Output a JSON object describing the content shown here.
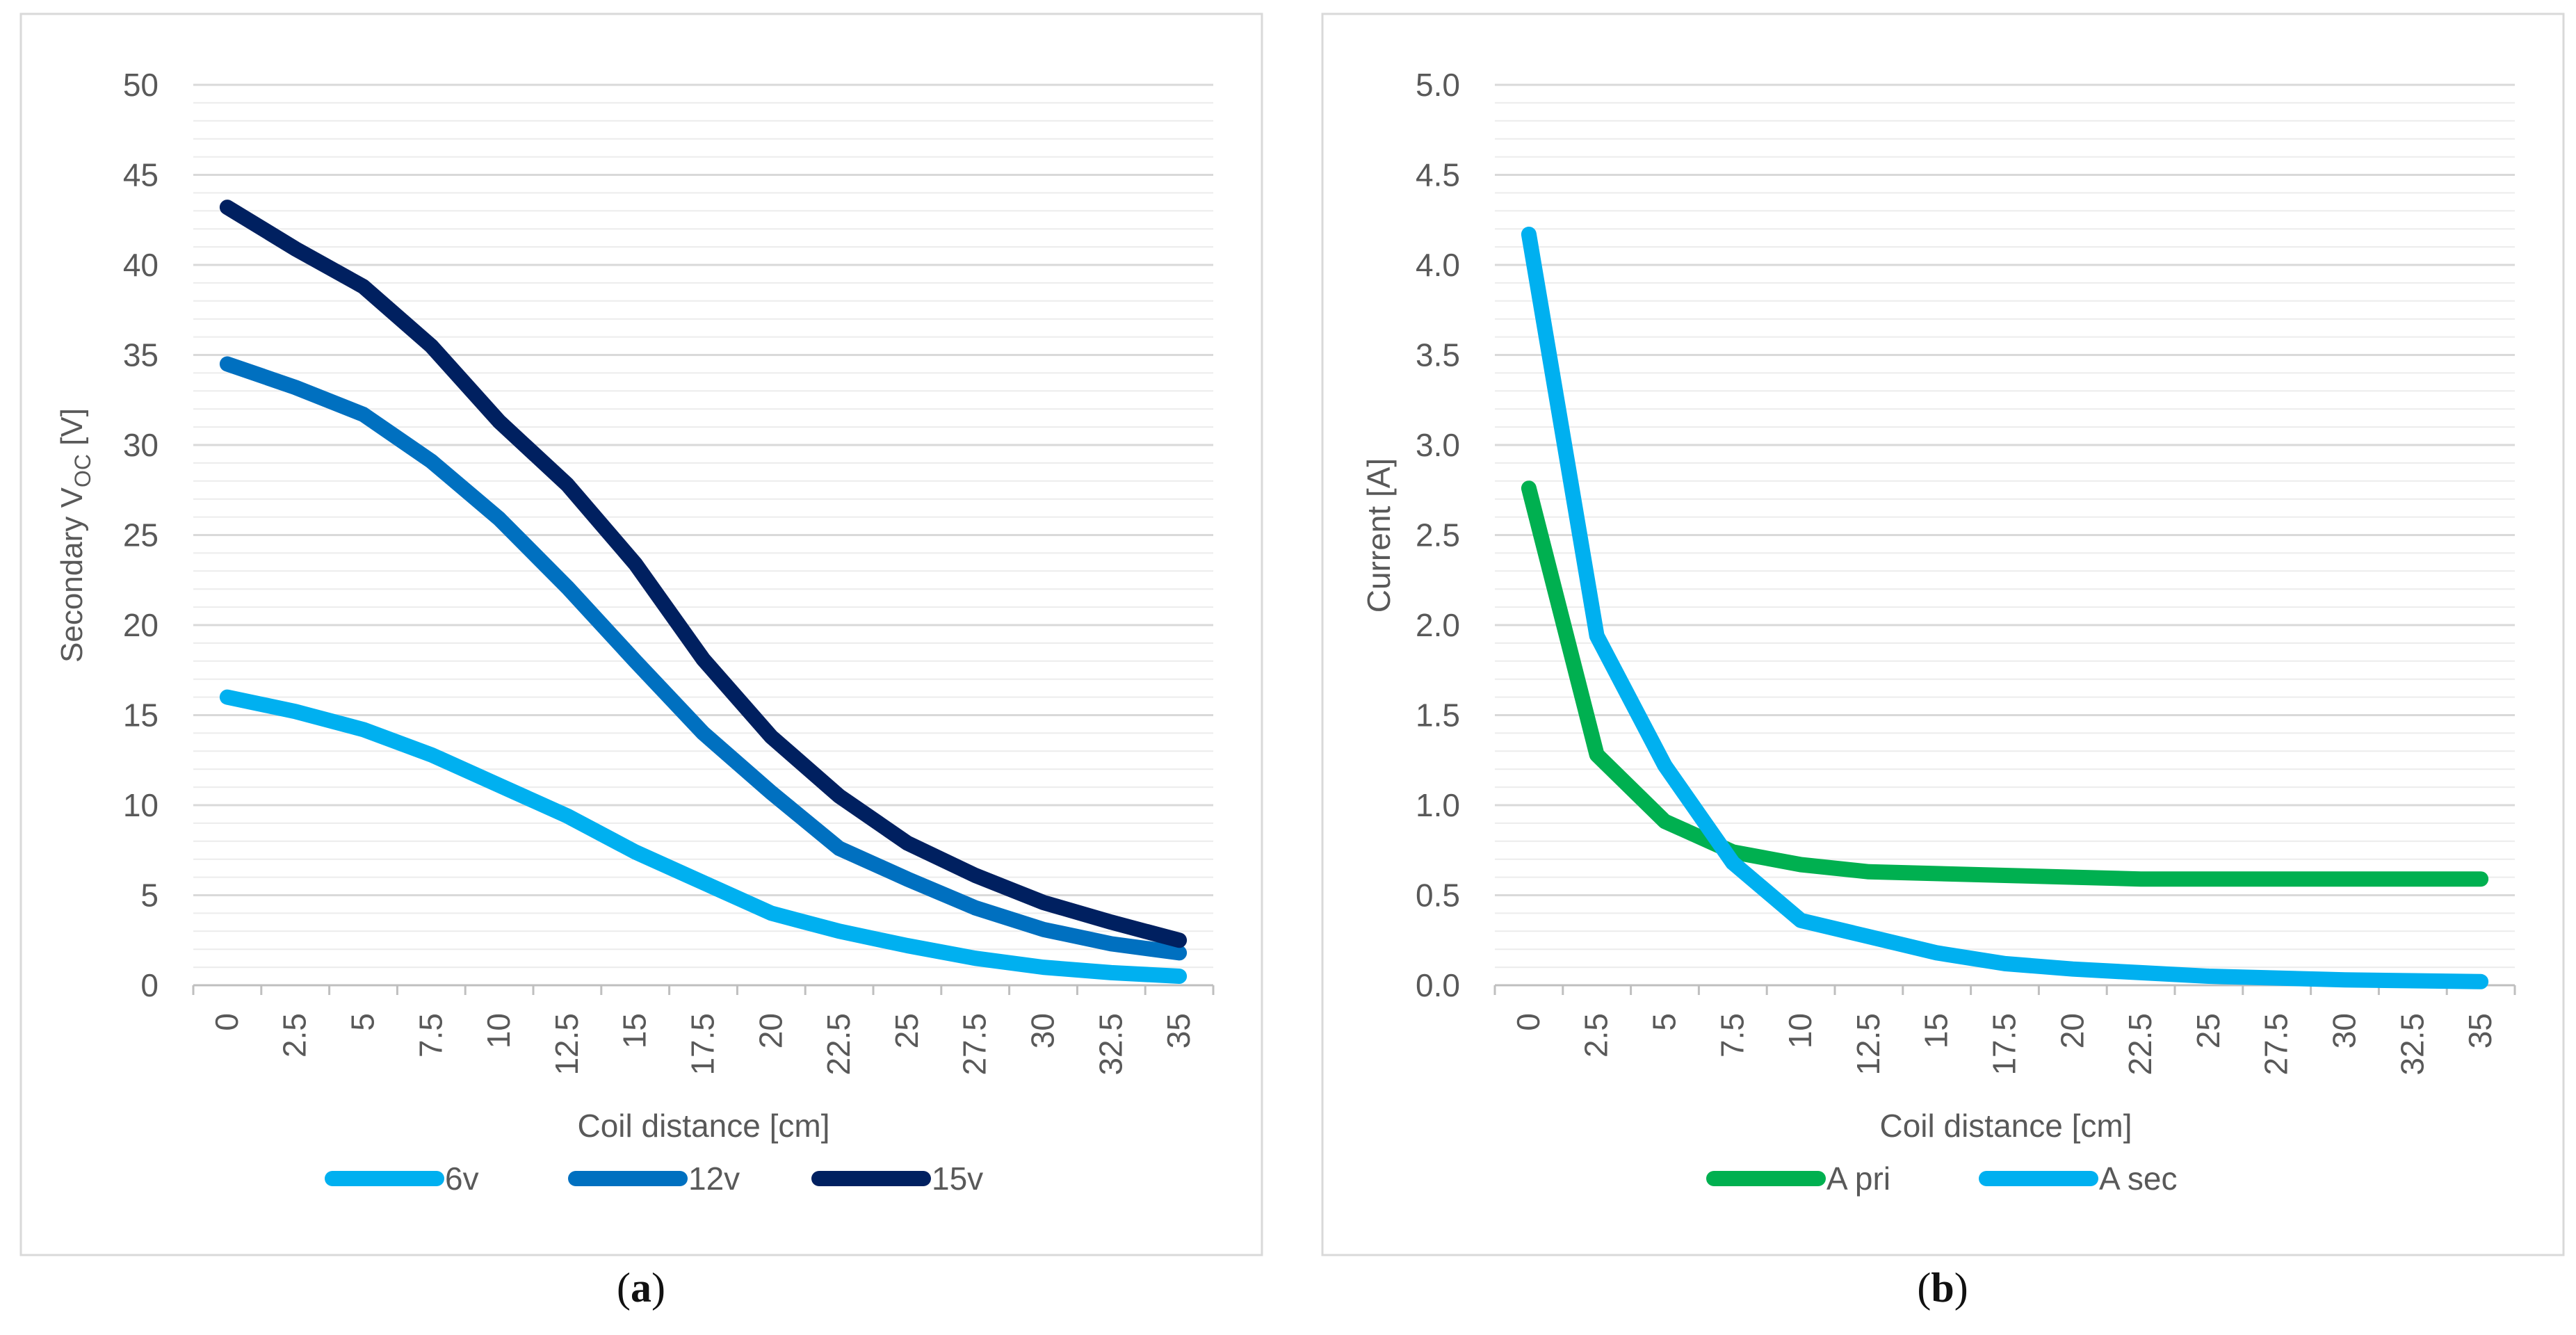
{
  "colors": {
    "frame": "#d9d9d9",
    "grid_major": "#d9d9d9",
    "grid_minor": "#ececec",
    "axis": "#bfbfbf",
    "text": "#595959"
  },
  "captions": [
    {
      "open": "(",
      "letter": "a",
      "close": ")"
    },
    {
      "open": "(",
      "letter": "b",
      "close": ")"
    }
  ],
  "chart_data": [
    {
      "type": "line",
      "title": "",
      "xlabel": "Coil distance [cm]",
      "ylabel_main": "Secondary V",
      "ylabel_sub": "OC",
      "ylabel_tail": " [V]",
      "x": [
        "0",
        "2.5",
        "5",
        "7.5",
        "10",
        "12.5",
        "15",
        "17.5",
        "20",
        "22.5",
        "25",
        "27.5",
        "30",
        "32.5",
        "35"
      ],
      "ylim": [
        0,
        50
      ],
      "yticks": [
        "0",
        "5",
        "10",
        "15",
        "20",
        "25",
        "30",
        "35",
        "40",
        "45",
        "50"
      ],
      "ytick_values": [
        0,
        5,
        10,
        15,
        20,
        25,
        30,
        35,
        40,
        45,
        50
      ],
      "minor_step": 1,
      "legend": "bottom",
      "series": [
        {
          "name": "6v",
          "color": "#00b0f0",
          "values": [
            16.0,
            15.2,
            14.2,
            12.8,
            11.1,
            9.4,
            7.4,
            5.7,
            4.0,
            3.0,
            2.2,
            1.5,
            1.0,
            0.7,
            0.5
          ]
        },
        {
          "name": "12v",
          "color": "#0070c0",
          "values": [
            34.5,
            33.2,
            31.7,
            29.1,
            25.9,
            22.1,
            18.0,
            14.0,
            10.7,
            7.6,
            5.9,
            4.3,
            3.1,
            2.3,
            1.8
          ]
        },
        {
          "name": "15v",
          "color": "#002060",
          "values": [
            43.2,
            40.9,
            38.8,
            35.5,
            31.3,
            27.8,
            23.4,
            18.1,
            13.8,
            10.5,
            7.9,
            6.1,
            4.6,
            3.5,
            2.5
          ]
        }
      ]
    },
    {
      "type": "line",
      "title": "",
      "xlabel": "Coil distance [cm]",
      "ylabel": "Current [A]",
      "x": [
        "0",
        "2.5",
        "5",
        "7.5",
        "10",
        "12.5",
        "15",
        "17.5",
        "20",
        "22.5",
        "25",
        "27.5",
        "30",
        "32.5",
        "35"
      ],
      "ylim": [
        0,
        5
      ],
      "yticks": [
        "0.0",
        "0.5",
        "1.0",
        "1.5",
        "2.0",
        "2.5",
        "3.0",
        "3.5",
        "4.0",
        "4.5",
        "5.0"
      ],
      "ytick_values": [
        0,
        0.5,
        1.0,
        1.5,
        2.0,
        2.5,
        3.0,
        3.5,
        4.0,
        4.5,
        5.0
      ],
      "minor_step": 0.1,
      "legend": "bottom",
      "series": [
        {
          "name": "A pri",
          "color": "#00b050",
          "values": [
            2.76,
            1.28,
            0.91,
            0.74,
            0.67,
            0.63,
            0.62,
            0.61,
            0.6,
            0.59,
            0.59,
            0.59,
            0.59,
            0.59,
            0.59
          ]
        },
        {
          "name": "A sec",
          "color": "#00b0f0",
          "values": [
            4.17,
            1.94,
            1.22,
            0.68,
            0.36,
            0.27,
            0.18,
            0.12,
            0.09,
            0.07,
            0.05,
            0.04,
            0.03,
            0.025,
            0.02
          ]
        }
      ]
    }
  ]
}
